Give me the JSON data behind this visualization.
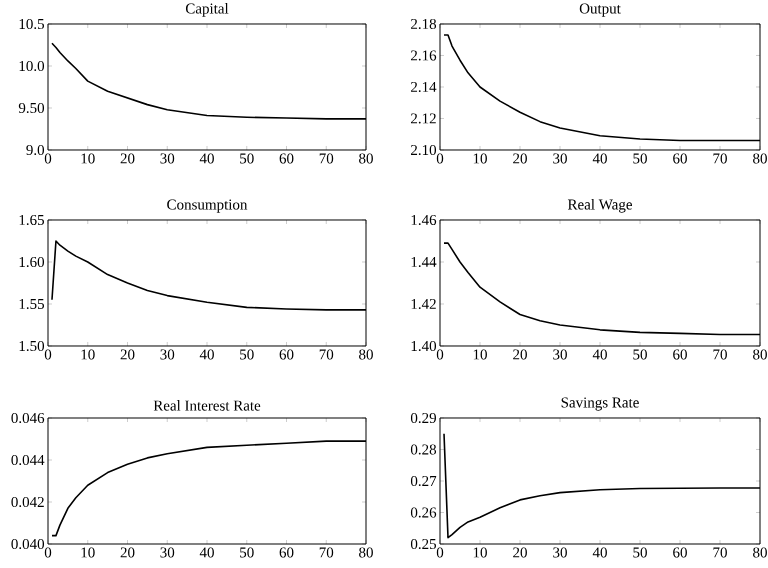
{
  "chart_data": [
    {
      "type": "line",
      "title": "Capital",
      "color": "#000000",
      "x": [
        1,
        2,
        3,
        5,
        7,
        10,
        15,
        20,
        25,
        30,
        40,
        50,
        60,
        70,
        80
      ],
      "values": [
        10.27,
        10.22,
        10.16,
        10.06,
        9.97,
        9.82,
        9.7,
        9.62,
        9.54,
        9.48,
        9.41,
        9.39,
        9.38,
        9.37,
        9.37
      ],
      "xlim": [
        0,
        80
      ],
      "ylim": [
        9,
        10.5
      ],
      "xticks": [
        0,
        10,
        20,
        30,
        40,
        50,
        60,
        70,
        80
      ],
      "yticks": [
        {
          "value": 9,
          "label": "9.0"
        },
        {
          "value": 9.5,
          "label": "9.50"
        },
        {
          "value": 10,
          "label": "10.0"
        },
        {
          "value": 10.5,
          "label": "10.5"
        }
      ]
    },
    {
      "type": "line",
      "title": "Output",
      "color": "#000000",
      "x": [
        1,
        2,
        3,
        5,
        7,
        10,
        15,
        20,
        25,
        30,
        40,
        50,
        60,
        70,
        80
      ],
      "values": [
        2.173,
        2.173,
        2.166,
        2.157,
        2.149,
        2.14,
        2.131,
        2.124,
        2.118,
        2.114,
        2.109,
        2.107,
        2.106,
        2.106,
        2.106
      ],
      "xlim": [
        0,
        80
      ],
      "ylim": [
        2.1,
        2.18
      ],
      "xticks": [
        0,
        10,
        20,
        30,
        40,
        50,
        60,
        70,
        80
      ],
      "yticks": [
        {
          "value": 2.1,
          "label": "2.10"
        },
        {
          "value": 2.12,
          "label": "2.12"
        },
        {
          "value": 2.14,
          "label": "2.14"
        },
        {
          "value": 2.16,
          "label": "2.16"
        },
        {
          "value": 2.18,
          "label": "2.18"
        }
      ]
    },
    {
      "type": "line",
      "title": "Consumption",
      "color": "#000000",
      "x": [
        1,
        2,
        3,
        5,
        7,
        10,
        15,
        20,
        25,
        30,
        40,
        50,
        60,
        70,
        80
      ],
      "values": [
        1.555,
        1.625,
        1.62,
        1.613,
        1.607,
        1.6,
        1.585,
        1.575,
        1.566,
        1.56,
        1.552,
        1.546,
        1.544,
        1.543,
        1.543
      ],
      "xlim": [
        0,
        80
      ],
      "ylim": [
        1.5,
        1.65
      ],
      "xticks": [
        0,
        10,
        20,
        30,
        40,
        50,
        60,
        70,
        80
      ],
      "yticks": [
        {
          "value": 1.5,
          "label": "1.50"
        },
        {
          "value": 1.55,
          "label": "1.55"
        },
        {
          "value": 1.6,
          "label": "1.60"
        },
        {
          "value": 1.65,
          "label": "1.65"
        }
      ]
    },
    {
      "type": "line",
      "title": "Real Wage",
      "color": "#000000",
      "x": [
        1,
        2,
        3,
        5,
        7,
        10,
        15,
        20,
        25,
        30,
        40,
        50,
        60,
        70,
        80
      ],
      "values": [
        1.449,
        1.449,
        1.446,
        1.44,
        1.435,
        1.428,
        1.421,
        1.415,
        1.412,
        1.41,
        1.4077,
        1.4065,
        1.406,
        1.4055,
        1.4055
      ],
      "xlim": [
        0,
        80
      ],
      "ylim": [
        1.4,
        1.46
      ],
      "xticks": [
        0,
        10,
        20,
        30,
        40,
        50,
        60,
        70,
        80
      ],
      "yticks": [
        {
          "value": 1.4,
          "label": "1.40"
        },
        {
          "value": 1.42,
          "label": "1.42"
        },
        {
          "value": 1.44,
          "label": "1.44"
        },
        {
          "value": 1.46,
          "label": "1.46"
        }
      ]
    },
    {
      "type": "line",
      "title": "Real Interest Rate",
      "color": "#000000",
      "x": [
        1,
        2,
        3,
        5,
        7,
        10,
        15,
        20,
        25,
        30,
        40,
        50,
        60,
        70,
        80
      ],
      "values": [
        0.0404,
        0.0404,
        0.0409,
        0.0417,
        0.0422,
        0.0428,
        0.0434,
        0.0438,
        0.0441,
        0.0443,
        0.0446,
        0.0447,
        0.0448,
        0.0449,
        0.0449
      ],
      "xlim": [
        0,
        80
      ],
      "ylim": [
        0.04,
        0.046
      ],
      "xticks": [
        0,
        10,
        20,
        30,
        40,
        50,
        60,
        70,
        80
      ],
      "yticks": [
        {
          "value": 0.04,
          "label": "0.040"
        },
        {
          "value": 0.042,
          "label": "0.042"
        },
        {
          "value": 0.044,
          "label": "0.044"
        },
        {
          "value": 0.046,
          "label": "0.046"
        }
      ]
    },
    {
      "type": "line",
      "title": "Savings Rate",
      "color": "#000000",
      "x": [
        1,
        2,
        3,
        5,
        7,
        10,
        15,
        20,
        25,
        30,
        40,
        50,
        60,
        70,
        80
      ],
      "values": [
        0.285,
        0.252,
        0.253,
        0.2553,
        0.257,
        0.2585,
        0.2615,
        0.264,
        0.2653,
        0.2663,
        0.2672,
        0.2676,
        0.2677,
        0.2678,
        0.2678
      ],
      "xlim": [
        0,
        80
      ],
      "ylim": [
        0.25,
        0.29
      ],
      "xticks": [
        0,
        10,
        20,
        30,
        40,
        50,
        60,
        70,
        80
      ],
      "yticks": [
        {
          "value": 0.25,
          "label": "0.25"
        },
        {
          "value": 0.26,
          "label": "0.26"
        },
        {
          "value": 0.27,
          "label": "0.27"
        },
        {
          "value": 0.28,
          "label": "0.28"
        },
        {
          "value": 0.29,
          "label": "0.29"
        }
      ]
    }
  ]
}
